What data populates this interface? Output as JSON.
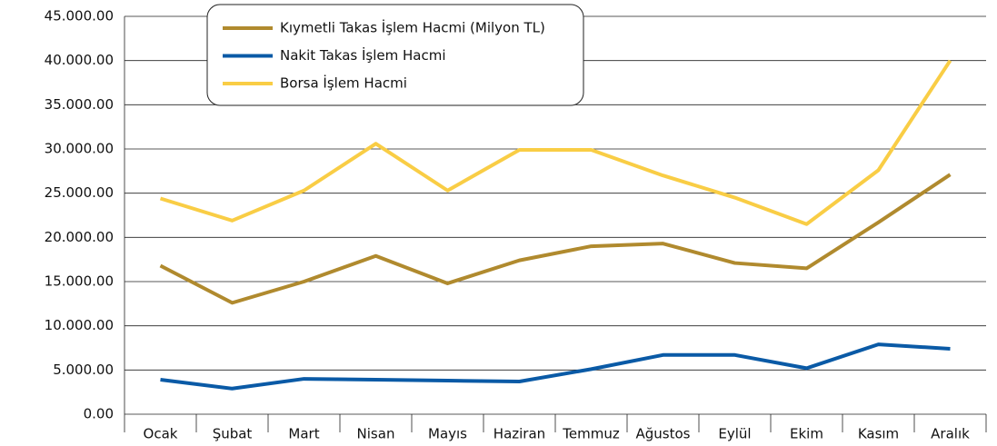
{
  "chart_data": {
    "type": "line",
    "categories": [
      "Ocak",
      "Şubat",
      "Mart",
      "Nisan",
      "Mayıs",
      "Haziran",
      "Temmuz",
      "Ağustos",
      "Eylül",
      "Ekim",
      "Kasım",
      "Aralık"
    ],
    "series": [
      {
        "name": "Kıymetli Takas İşlem Hacmi (Milyon TL)",
        "color": "#b08a2e",
        "values": [
          16800,
          12600,
          15000,
          17900,
          14800,
          17400,
          19000,
          19300,
          17100,
          16500,
          21700,
          27100
        ]
      },
      {
        "name": "Nakit Takas İşlem Hacmi",
        "color": "#0a5aa6",
        "values": [
          3900,
          2900,
          4000,
          3900,
          3800,
          3700,
          5100,
          6700,
          6700,
          5200,
          7900,
          7400
        ]
      },
      {
        "name": "Borsa İşlem Hacmi",
        "color": "#f9cd45",
        "values": [
          24400,
          21900,
          25300,
          30600,
          25300,
          29900,
          29900,
          27000,
          24500,
          21500,
          27600,
          40000
        ]
      }
    ],
    "ylim": [
      0,
      45000
    ],
    "yticks": [
      {
        "value": 0,
        "label": "0.00"
      },
      {
        "value": 5000,
        "label": "5.000.00"
      },
      {
        "value": 10000,
        "label": "10.000.00"
      },
      {
        "value": 15000,
        "label": "15.000.00"
      },
      {
        "value": 20000,
        "label": "20.000.00"
      },
      {
        "value": 25000,
        "label": "25.000.00"
      },
      {
        "value": 30000,
        "label": "30.000.00"
      },
      {
        "value": 35000,
        "label": "35.000.00"
      },
      {
        "value": 40000,
        "label": "40.000.00"
      },
      {
        "value": 45000,
        "label": "45.000.00"
      }
    ],
    "grid": true,
    "legend": "top-left"
  }
}
